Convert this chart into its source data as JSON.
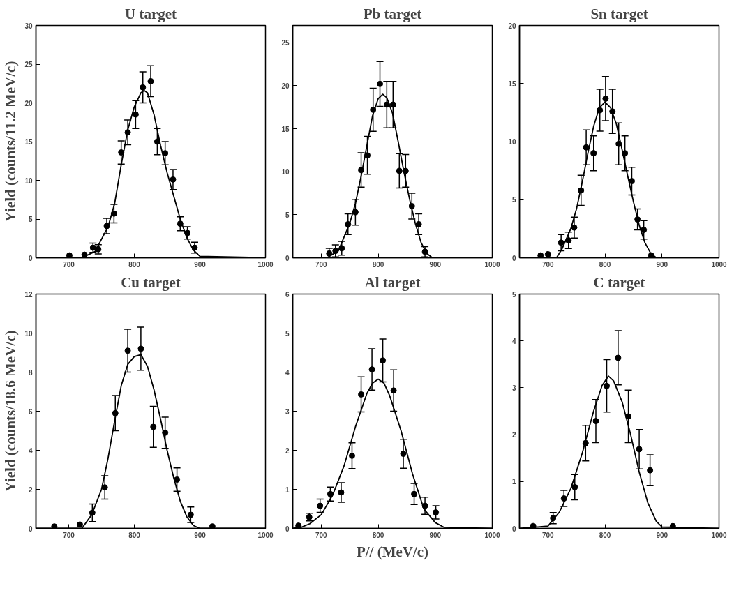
{
  "chart_data": [
    {
      "type": "scatter",
      "title": "U target",
      "ylabel": "Yield (counts/11.2 MeV/c)",
      "xlim": [
        650,
        1000
      ],
      "xticks": [
        700,
        800,
        900,
        1000
      ],
      "ylim": [
        0,
        30
      ],
      "yticks": [
        0,
        5,
        10,
        15,
        20,
        25,
        30
      ],
      "series": [
        {
          "marker": "circle",
          "color": "#000000",
          "x": [
            701,
            724,
            737,
            745,
            758,
            769,
            780,
            790,
            802,
            813,
            825,
            835,
            847,
            859,
            870,
            881,
            892
          ],
          "values": [
            0.3,
            0.4,
            1.3,
            1.1,
            4.1,
            5.7,
            13.6,
            16.2,
            18.5,
            22.0,
            22.8,
            15.0,
            13.5,
            10.1,
            4.4,
            3.2,
            1.3
          ],
          "errors": [
            null,
            null,
            0.6,
            0.6,
            1.0,
            1.2,
            1.5,
            1.6,
            1.8,
            2.0,
            2.0,
            1.7,
            1.5,
            1.3,
            0.9,
            0.8,
            0.7
          ]
        },
        {
          "type": "line",
          "color": "#000000",
          "x": [
            650,
            720,
            740,
            760,
            770,
            780,
            790,
            800,
            810,
            815,
            820,
            830,
            840,
            850,
            860,
            870,
            880,
            890,
            900,
            1000
          ],
          "values": [
            0,
            0,
            0.8,
            4,
            7,
            12,
            16.5,
            19.5,
            21.3,
            21.6,
            21.3,
            18.5,
            14.5,
            11,
            8,
            5,
            2.6,
            1,
            0.2,
            0
          ]
        }
      ]
    },
    {
      "type": "scatter",
      "title": "Pb target",
      "xlim": [
        650,
        1000
      ],
      "xticks": [
        700,
        800,
        900,
        1000
      ],
      "ylim": [
        0,
        27
      ],
      "yticks": [
        0,
        5,
        10,
        15,
        20,
        25
      ],
      "series": [
        {
          "marker": "circle",
          "color": "#000000",
          "x": [
            714,
            725,
            736,
            747,
            760,
            770,
            781,
            791,
            803,
            815,
            826,
            837,
            848,
            859,
            871,
            882
          ],
          "values": [
            0.5,
            0.8,
            1.1,
            3.9,
            5.3,
            10.2,
            11.9,
            17.2,
            20.2,
            17.8,
            17.8,
            10.1,
            10.1,
            6.0,
            3.9,
            0.7
          ],
          "errors": [
            0.6,
            0.7,
            0.8,
            1.2,
            1.5,
            2.0,
            2.2,
            2.5,
            2.6,
            2.7,
            2.7,
            2.0,
            1.9,
            1.5,
            1.2,
            0.6
          ]
        },
        {
          "type": "line",
          "color": "#000000",
          "x": [
            650,
            710,
            730,
            750,
            760,
            770,
            780,
            790,
            800,
            808,
            815,
            825,
            835,
            845,
            855,
            865,
            875,
            885,
            895,
            1000
          ],
          "values": [
            0,
            0,
            0.8,
            4,
            6.3,
            9.5,
            13,
            16.5,
            18.5,
            19,
            18.6,
            16.8,
            13.5,
            10,
            6.8,
            4,
            1.8,
            0.5,
            0,
            0
          ]
        }
      ]
    },
    {
      "type": "scatter",
      "title": "Sn target",
      "xlim": [
        650,
        1000
      ],
      "xticks": [
        700,
        800,
        900,
        1000
      ],
      "ylim": [
        0,
        20
      ],
      "yticks": [
        0,
        5,
        10,
        15,
        20
      ],
      "series": [
        {
          "marker": "circle",
          "color": "#000000",
          "x": [
            687,
            700,
            723,
            736,
            746,
            758,
            767,
            780,
            791,
            801,
            813,
            824,
            835,
            847,
            857,
            868,
            881
          ],
          "values": [
            0.2,
            0.3,
            1.3,
            1.5,
            2.6,
            5.8,
            9.5,
            9.0,
            12.7,
            13.7,
            12.6,
            9.8,
            9.0,
            6.6,
            3.3,
            2.4,
            0.2
          ],
          "errors": [
            null,
            null,
            0.7,
            0.7,
            0.9,
            1.3,
            1.5,
            1.5,
            1.8,
            1.9,
            1.9,
            1.8,
            1.5,
            1.2,
            0.9,
            0.8,
            null
          ]
        },
        {
          "type": "line",
          "color": "#000000",
          "x": [
            650,
            715,
            725,
            740,
            750,
            760,
            770,
            780,
            790,
            800,
            810,
            820,
            830,
            840,
            850,
            860,
            870,
            880,
            890,
            1000
          ],
          "values": [
            0,
            0,
            0.8,
            2.5,
            4.2,
            6.5,
            9,
            11.3,
            12.9,
            13.4,
            12.9,
            11.5,
            9.3,
            7,
            4.8,
            2.8,
            1.3,
            0.4,
            0,
            0
          ]
        }
      ]
    },
    {
      "type": "scatter",
      "title": "Cu target",
      "ylabel": "Yield (counts/18.6 MeV/c)",
      "xlim": [
        650,
        1000
      ],
      "xticks": [
        700,
        800,
        900,
        1000
      ],
      "ylim": [
        0,
        12
      ],
      "yticks": [
        0,
        2,
        4,
        6,
        8,
        10,
        12
      ],
      "series": [
        {
          "marker": "circle",
          "color": "#000000",
          "x": [
            678,
            717,
            736,
            755,
            771,
            790,
            810,
            829,
            847,
            865,
            886,
            919
          ],
          "values": [
            0.1,
            0.2,
            0.8,
            2.1,
            5.9,
            9.1,
            9.2,
            5.2,
            4.9,
            2.5,
            0.7,
            0.1
          ],
          "errors": [
            null,
            null,
            0.45,
            0.6,
            0.9,
            1.1,
            1.1,
            1.05,
            0.8,
            0.6,
            0.4,
            null
          ]
        },
        {
          "type": "line",
          "color": "#000000",
          "x": [
            650,
            720,
            735,
            750,
            760,
            770,
            780,
            790,
            800,
            810,
            820,
            830,
            840,
            850,
            860,
            870,
            880,
            890,
            900,
            1000
          ],
          "values": [
            0,
            0,
            0.7,
            2,
            3.6,
            5.5,
            7.3,
            8.4,
            8.8,
            8.9,
            8.3,
            7.1,
            5.6,
            4,
            2.6,
            1.4,
            0.6,
            0.15,
            0,
            0
          ]
        }
      ]
    },
    {
      "type": "scatter",
      "title": "Al target",
      "xlabel": "P// (MeV/c)",
      "xlim": [
        650,
        1000
      ],
      "xticks": [
        700,
        800,
        900,
        1000
      ],
      "ylim": [
        0,
        6
      ],
      "yticks": [
        0,
        1,
        2,
        3,
        4,
        5,
        6
      ],
      "series": [
        {
          "marker": "circle",
          "color": "#000000",
          "x": [
            660,
            679,
            698,
            716,
            735,
            754,
            770,
            789,
            808,
            827,
            844,
            863,
            882,
            901
          ],
          "values": [
            0.07,
            0.29,
            0.58,
            0.88,
            0.92,
            1.86,
            3.43,
            4.07,
            4.3,
            3.53,
            1.91,
            0.88,
            0.58,
            0.41
          ],
          "errors": [
            null,
            0.1,
            0.17,
            0.18,
            0.25,
            0.33,
            0.45,
            0.53,
            0.55,
            0.53,
            0.37,
            0.27,
            0.22,
            0.17
          ]
        },
        {
          "type": "line",
          "color": "#000000",
          "x": [
            650,
            665,
            680,
            700,
            720,
            740,
            760,
            780,
            790,
            800,
            810,
            820,
            840,
            860,
            880,
            900,
            915,
            1000
          ],
          "values": [
            0,
            0.03,
            0.12,
            0.35,
            0.85,
            1.6,
            2.6,
            3.45,
            3.72,
            3.82,
            3.72,
            3.4,
            2.5,
            1.4,
            0.5,
            0.15,
            0.03,
            0
          ]
        }
      ]
    },
    {
      "type": "scatter",
      "title": "C target",
      "xlim": [
        650,
        1000
      ],
      "xticks": [
        700,
        800,
        900,
        1000
      ],
      "ylim": [
        0,
        5
      ],
      "yticks": [
        0,
        1,
        2,
        3,
        4,
        5
      ],
      "series": [
        {
          "marker": "circle",
          "color": "#000000",
          "x": [
            674,
            709,
            728,
            747,
            766,
            784,
            803,
            823,
            841,
            860,
            879,
            919
          ],
          "values": [
            0.05,
            0.22,
            0.64,
            0.88,
            1.82,
            2.29,
            3.04,
            3.64,
            2.39,
            1.69,
            1.24,
            0.05
          ],
          "errors": [
            null,
            0.12,
            0.17,
            0.27,
            0.38,
            0.46,
            0.56,
            0.58,
            0.56,
            0.42,
            0.33,
            null
          ]
        },
        {
          "type": "line",
          "color": "#000000",
          "x": [
            650,
            700,
            720,
            740,
            760,
            780,
            795,
            806,
            815,
            830,
            845,
            860,
            875,
            890,
            900,
            1000
          ],
          "values": [
            0,
            0.05,
            0.35,
            0.85,
            1.6,
            2.5,
            3.05,
            3.25,
            3.15,
            2.7,
            2.0,
            1.2,
            0.55,
            0.15,
            0.03,
            0
          ]
        }
      ]
    }
  ]
}
